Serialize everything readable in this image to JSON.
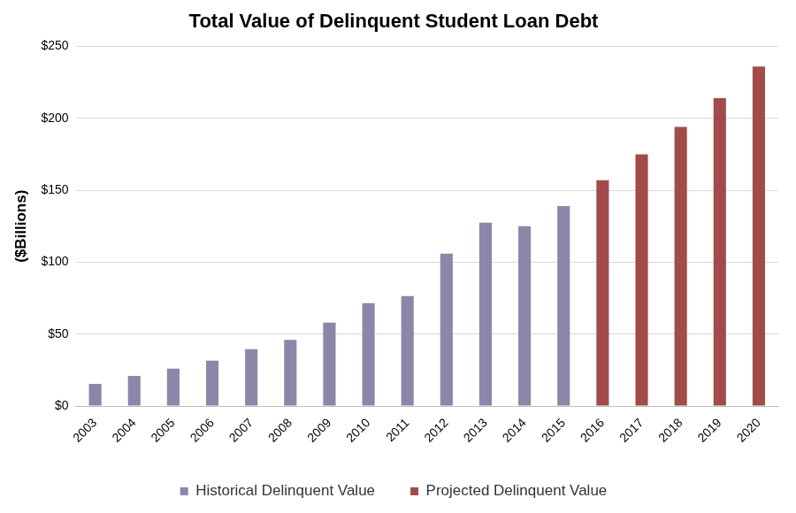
{
  "chart_data": {
    "type": "bar",
    "title": "Total Value of Delinquent Student Loan Debt",
    "y_label": "($Billions)",
    "categories": [
      "2003",
      "2004",
      "2005",
      "2006",
      "2007",
      "2008",
      "2009",
      "2010",
      "2011",
      "2012",
      "2013",
      "2014",
      "2015",
      "2016",
      "2017",
      "2018",
      "2019",
      "2020"
    ],
    "series": [
      {
        "name": "Historical Delinquent Value",
        "color": "#8b87a8",
        "values": [
          15.5,
          21,
          26,
          31.5,
          39.5,
          46,
          58,
          71.5,
          76.5,
          106,
          127.5,
          125,
          139,
          null,
          null,
          null,
          null,
          null
        ]
      },
      {
        "name": "Projected Delinquent Value",
        "color": "#a24b4b",
        "values": [
          null,
          null,
          null,
          null,
          null,
          null,
          null,
          null,
          null,
          null,
          null,
          null,
          null,
          157,
          175,
          194,
          214,
          236
        ]
      }
    ],
    "ylim": [
      0,
      250
    ],
    "yticks": [
      {
        "value": 0,
        "label": "$0"
      },
      {
        "value": 50,
        "label": "$50"
      },
      {
        "value": 100,
        "label": "$100"
      },
      {
        "value": 150,
        "label": "$150"
      },
      {
        "value": 200,
        "label": "$200"
      },
      {
        "value": 250,
        "label": "$250"
      }
    ],
    "grid": true,
    "legend": "bottom"
  }
}
